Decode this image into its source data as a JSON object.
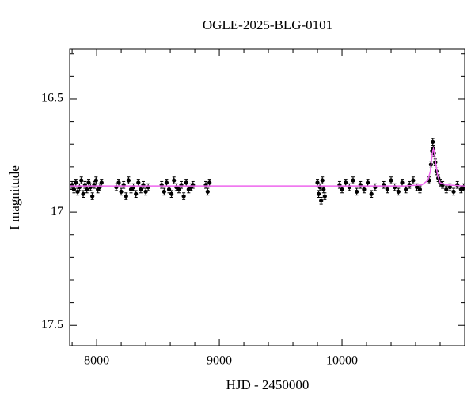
{
  "chart_data": {
    "type": "scatter",
    "title": "OGLE-2025-BLG-0101",
    "x_label": "HJD - 2450000",
    "y_label": "I magnitude",
    "xlim": [
      7780,
      11000
    ],
    "ylim": [
      16.28,
      17.59
    ],
    "y_inverted": true,
    "xticks": [
      8000,
      9000,
      10000
    ],
    "yticks": [
      16.5,
      17,
      17.5
    ],
    "xminorticks": [
      7800,
      8200,
      8400,
      8600,
      8800,
      9200,
      9400,
      9600,
      9800,
      10200,
      10400,
      10600,
      10800
    ],
    "yminorticks": [
      16.3,
      16.4,
      16.6,
      16.7,
      16.8,
      16.9,
      17.1,
      17.2,
      17.3,
      17.4
    ],
    "series": [
      {
        "type": "scatter",
        "color": "#000000",
        "error": 0.015,
        "x": [
          7800,
          7815,
          7830,
          7845,
          7860,
          7875,
          7890,
          7905,
          7920,
          7935,
          7950,
          7965,
          7980,
          7995,
          8010,
          8025,
          8040,
          8160,
          8180,
          8200,
          8220,
          8240,
          8260,
          8280,
          8300,
          8320,
          8340,
          8360,
          8380,
          8400,
          8420,
          8530,
          8550,
          8570,
          8590,
          8610,
          8630,
          8650,
          8670,
          8690,
          8710,
          8730,
          8750,
          8770,
          8785,
          8890,
          8905,
          8920,
          9800,
          9810,
          9820,
          9830,
          9840,
          9850,
          9860,
          9980,
          10000,
          10030,
          10060,
          10090,
          10120,
          10150,
          10180,
          10210,
          10240,
          10270,
          10340,
          10370,
          10400,
          10430,
          10460,
          10490,
          10520,
          10550,
          10580,
          10610,
          10635,
          10710,
          10725,
          10735,
          10740,
          10745,
          10750,
          10760,
          10770,
          10785,
          10800,
          10820,
          10850,
          10880,
          10910,
          10940,
          10970,
          10990
        ],
        "values": [
          16.88,
          16.9,
          16.87,
          16.91,
          16.89,
          16.86,
          16.92,
          16.88,
          16.9,
          16.87,
          16.89,
          16.93,
          16.88,
          16.86,
          16.9,
          16.89,
          16.87,
          16.89,
          16.87,
          16.91,
          16.88,
          16.93,
          16.86,
          16.9,
          16.89,
          16.92,
          16.87,
          16.9,
          16.88,
          16.91,
          16.89,
          16.88,
          16.91,
          16.87,
          16.9,
          16.92,
          16.86,
          16.89,
          16.9,
          16.88,
          16.93,
          16.87,
          16.9,
          16.89,
          16.88,
          16.88,
          16.91,
          16.87,
          16.87,
          16.92,
          16.89,
          16.95,
          16.86,
          16.9,
          16.93,
          16.88,
          16.9,
          16.87,
          16.89,
          16.86,
          16.91,
          16.88,
          16.9,
          16.87,
          16.92,
          16.89,
          16.88,
          16.9,
          16.86,
          16.89,
          16.91,
          16.87,
          16.9,
          16.88,
          16.86,
          16.89,
          16.9,
          16.86,
          16.79,
          16.73,
          16.69,
          16.72,
          16.74,
          16.78,
          16.82,
          16.85,
          16.87,
          16.88,
          16.9,
          16.89,
          16.91,
          16.88,
          16.9,
          16.89
        ]
      },
      {
        "type": "line",
        "color": "#ee66ee",
        "x": [
          7780,
          10500,
          10650,
          10700,
          10720,
          10730,
          10740,
          10745,
          10750,
          10760,
          10780,
          10800,
          10850,
          11000
        ],
        "values": [
          16.885,
          16.885,
          16.88,
          16.86,
          16.82,
          16.77,
          16.73,
          16.72,
          16.73,
          16.77,
          16.84,
          16.87,
          16.88,
          16.885
        ]
      }
    ]
  }
}
